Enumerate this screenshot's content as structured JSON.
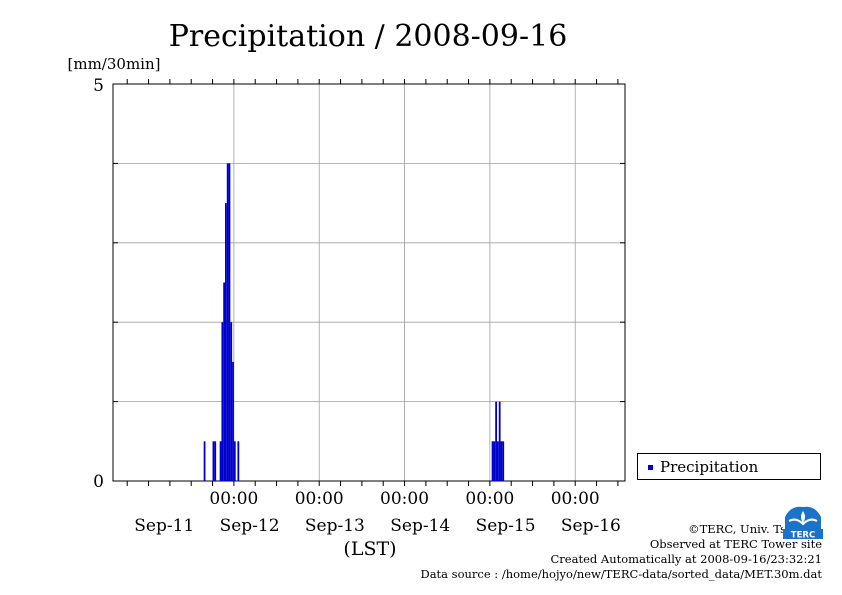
{
  "chart_data": {
    "type": "bar",
    "title": "Precipitation / 2008-09-16",
    "ylabel": "[mm/30min]",
    "xlabel": "(LST)",
    "ylim": [
      0,
      5
    ],
    "y_tick_labels": [
      "0",
      "5"
    ],
    "x_time_ticks": [
      "00:00",
      "00:00",
      "00:00",
      "00:00",
      "00:00"
    ],
    "x_date_labels": [
      "Sep-11",
      "Sep-12",
      "Sep-13",
      "Sep-14",
      "Sep-15",
      "Sep-16"
    ],
    "grid": true,
    "legend_position": "right",
    "series": [
      {
        "name": "Precipitation",
        "color": "#0000cc",
        "points": [
          {
            "time": "2008-09-11 15:30",
            "value": 0.5
          },
          {
            "time": "2008-09-11 18:00",
            "value": 0.5
          },
          {
            "time": "2008-09-11 18:30",
            "value": 0.5
          },
          {
            "time": "2008-09-11 20:00",
            "value": 0.5
          },
          {
            "time": "2008-09-11 20:30",
            "value": 2.0
          },
          {
            "time": "2008-09-11 21:00",
            "value": 2.5
          },
          {
            "time": "2008-09-11 21:30",
            "value": 3.5
          },
          {
            "time": "2008-09-11 22:00",
            "value": 4.0
          },
          {
            "time": "2008-09-11 22:30",
            "value": 4.0
          },
          {
            "time": "2008-09-11 23:00",
            "value": 2.0
          },
          {
            "time": "2008-09-11 23:30",
            "value": 1.5
          },
          {
            "time": "2008-09-12 00:00",
            "value": 0.5
          },
          {
            "time": "2008-09-12 01:00",
            "value": 0.5
          },
          {
            "time": "2008-09-15 00:30",
            "value": 0.5
          },
          {
            "time": "2008-09-15 01:00",
            "value": 0.5
          },
          {
            "time": "2008-09-15 01:30",
            "value": 1.0
          },
          {
            "time": "2008-09-15 02:00",
            "value": 0.5
          },
          {
            "time": "2008-09-15 02:30",
            "value": 1.0
          },
          {
            "time": "2008-09-15 03:00",
            "value": 0.5
          },
          {
            "time": "2008-09-15 03:30",
            "value": 0.5
          }
        ]
      }
    ]
  },
  "credits": {
    "copyright": "©TERC, Univ. Tsukuba",
    "observed": "Observed at TERC Tower site",
    "created": "Created Automatically at 2008-09-16/23:32:21",
    "source": "Data source : /home/hojyo/new/TERC-data/sorted_data/MET.30m.dat"
  },
  "logo": {
    "text": "TERC",
    "color": "#1a73c9"
  }
}
